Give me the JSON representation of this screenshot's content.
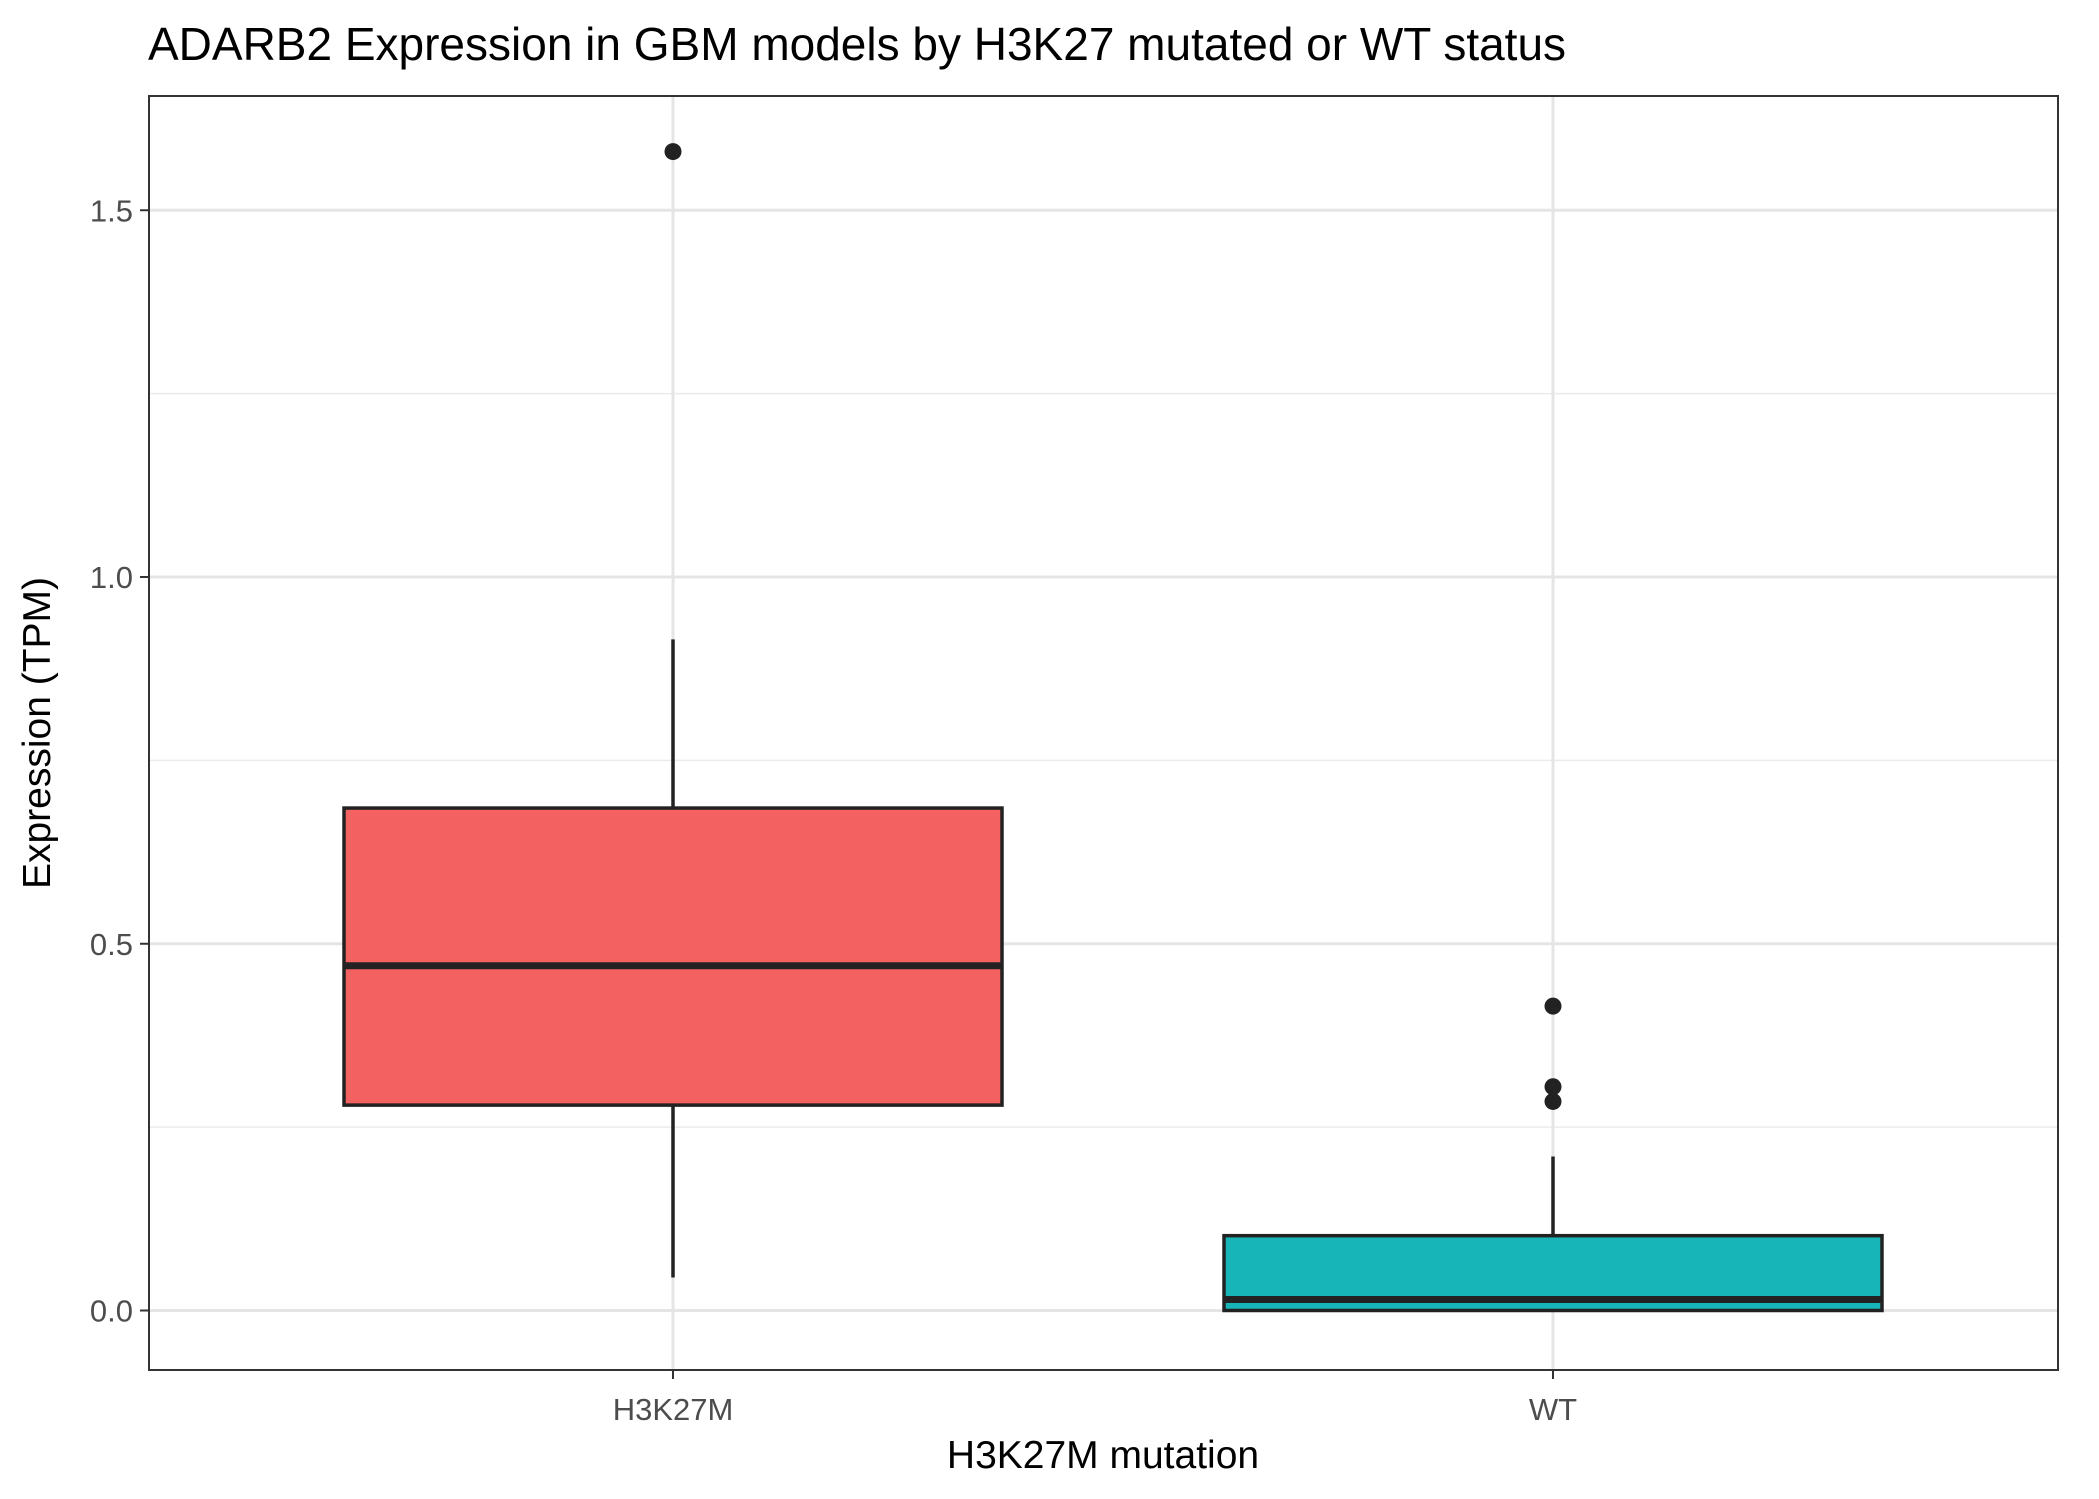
{
  "chart_data": {
    "type": "box",
    "title": "ADARB2 Expression in GBM models by H3K27 mutated or WT status",
    "xlabel": "H3K27M mutation",
    "ylabel": "Expression (TPM)",
    "ylim": [
      -0.077,
      1.65
    ],
    "yticks": [
      0.0,
      0.5,
      1.0,
      1.5
    ],
    "ytick_labels": [
      "0.0",
      "0.5",
      "1.0",
      "1.5"
    ],
    "minor_yticks": [
      0.25,
      0.75,
      1.25
    ],
    "grid": true,
    "legend": "none",
    "categories": [
      "H3K27M",
      "WT"
    ],
    "boxes": [
      {
        "category": "H3K27M",
        "color": "#F36160",
        "whisker_low": 0.045,
        "q1": 0.28,
        "median": 0.47,
        "q3": 0.685,
        "whisker_high": 0.915,
        "outliers": [
          1.58
        ]
      },
      {
        "category": "WT",
        "color": "#18B5B8",
        "whisker_low": 0.0,
        "q1": 0.0,
        "median": 0.015,
        "q3": 0.102,
        "whisker_high": 0.21,
        "outliers": [
          0.415,
          0.305,
          0.285
        ]
      }
    ]
  }
}
